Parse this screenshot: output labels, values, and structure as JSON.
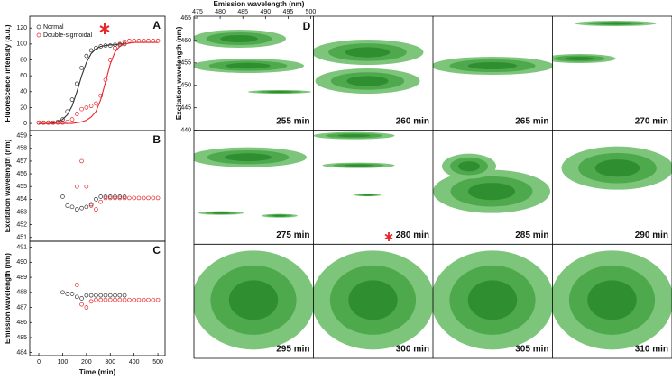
{
  "chart_data": [
    {
      "type": "scatter",
      "panel": "A",
      "ylabel": "Fluorescence intensity (a.u.)",
      "x": [
        0,
        20,
        40,
        60,
        80,
        100,
        120,
        140,
        160,
        180,
        200,
        220,
        240,
        260,
        280,
        300,
        320,
        340,
        360,
        380,
        400,
        420,
        440,
        460,
        480,
        500
      ],
      "series": [
        {
          "name": "Normal",
          "color": "#333333",
          "values": [
            1,
            1,
            1,
            1,
            2,
            5,
            15,
            30,
            50,
            70,
            85,
            92,
            95,
            97,
            98,
            98,
            99,
            99,
            100,
            null,
            null,
            null,
            null,
            null,
            null,
            null
          ],
          "fit": [
            0,
            0,
            0,
            1,
            2,
            5,
            11,
            22,
            40,
            60,
            77,
            88,
            94,
            97,
            98,
            99,
            99,
            100,
            100,
            null,
            null,
            null,
            null,
            null,
            null,
            null
          ]
        },
        {
          "name": "Double-sigmoidal",
          "color": "#e8262a",
          "values": [
            1,
            1,
            1,
            1,
            1,
            1,
            2,
            5,
            12,
            18,
            20,
            22,
            25,
            35,
            55,
            80,
            95,
            100,
            103,
            104,
            104,
            104,
            104,
            104,
            104,
            104
          ],
          "fit": [
            0,
            0,
            0,
            0,
            0,
            0,
            0,
            0,
            1,
            2,
            4,
            8,
            15,
            30,
            52,
            75,
            90,
            97,
            100,
            101,
            102,
            102,
            102,
            102,
            102,
            102
          ]
        }
      ],
      "xlim": [
        -38,
        530
      ],
      "ylim": [
        -9,
        135
      ],
      "yticks": [
        0,
        20,
        40,
        60,
        80,
        100,
        120
      ]
    },
    {
      "type": "scatter",
      "panel": "B",
      "ylabel": "Excitation wavelength (nm)",
      "x": [
        0,
        20,
        40,
        60,
        80,
        100,
        120,
        140,
        160,
        180,
        200,
        220,
        240,
        260,
        280,
        300,
        320,
        340,
        360,
        380,
        400,
        420,
        440,
        460,
        480,
        500
      ],
      "series": [
        {
          "name": "Normal",
          "color": "#333333",
          "values": [
            null,
            null,
            null,
            null,
            null,
            454.2,
            453.5,
            453.4,
            453.2,
            453.3,
            453.4,
            453.6,
            454,
            454.2,
            454.2,
            454.2,
            454.2,
            454.2,
            454.2,
            null,
            null,
            null,
            null,
            null,
            null,
            null
          ]
        },
        {
          "name": "Double-sigmoidal",
          "color": "#e8262a",
          "values": [
            null,
            null,
            null,
            null,
            null,
            null,
            null,
            null,
            455,
            457,
            455,
            453.5,
            453.2,
            453.8,
            454.1,
            454.1,
            454.1,
            454.1,
            454.1,
            454.1,
            454.1,
            454.1,
            454.1,
            454.1,
            454.1,
            454.1
          ]
        }
      ],
      "xlim": [
        -38,
        530
      ],
      "ylim": [
        450.7,
        459.4
      ],
      "yticks": [
        451,
        452,
        453,
        454,
        455,
        456,
        457,
        458,
        459
      ]
    },
    {
      "type": "scatter",
      "panel": "C",
      "ylabel": "Emission wavelength (nm)",
      "xlabel": "Time (min)",
      "x": [
        0,
        20,
        40,
        60,
        80,
        100,
        120,
        140,
        160,
        180,
        200,
        220,
        240,
        260,
        280,
        300,
        320,
        340,
        360,
        380,
        400,
        420,
        440,
        460,
        480,
        500
      ],
      "series": [
        {
          "name": "Normal",
          "color": "#333333",
          "values": [
            null,
            null,
            null,
            null,
            null,
            488,
            487.9,
            487.9,
            487.7,
            487.6,
            487.8,
            487.8,
            487.8,
            487.8,
            487.8,
            487.8,
            487.8,
            487.8,
            487.8,
            null,
            null,
            null,
            null,
            null,
            null,
            null
          ]
        },
        {
          "name": "Double-sigmoidal",
          "color": "#e8262a",
          "values": [
            null,
            null,
            null,
            null,
            null,
            null,
            null,
            null,
            488.5,
            487.2,
            487,
            487.4,
            487.5,
            487.5,
            487.5,
            487.5,
            487.5,
            487.5,
            487.5,
            487.5,
            487.5,
            487.5,
            487.5,
            487.5,
            487.5,
            487.5
          ]
        }
      ],
      "xlim": [
        -38,
        530
      ],
      "ylim": [
        483.8,
        491.4
      ],
      "yticks": [
        484,
        485,
        486,
        487,
        488,
        489,
        490,
        491
      ],
      "xticks": [
        0,
        100,
        200,
        300,
        400,
        500
      ]
    },
    {
      "type": "contour-grid",
      "panel": "D",
      "xlabel": "Emission wavelength (nm)",
      "ylabel": "Excitation wavelength (nm)",
      "xlim": [
        474.2,
        500.6
      ],
      "xticks": [
        475,
        480,
        485,
        490,
        495,
        500
      ],
      "ylim": [
        440,
        465.4
      ],
      "yticks": [
        440,
        445,
        450,
        455,
        460,
        465
      ],
      "panels": [
        "255 min",
        "260 min",
        "265 min",
        "270 min",
        "275 min",
        "280 min",
        "285 min",
        "290 min",
        "295 min",
        "300 min",
        "305 min",
        "310 min"
      ]
    }
  ]
}
